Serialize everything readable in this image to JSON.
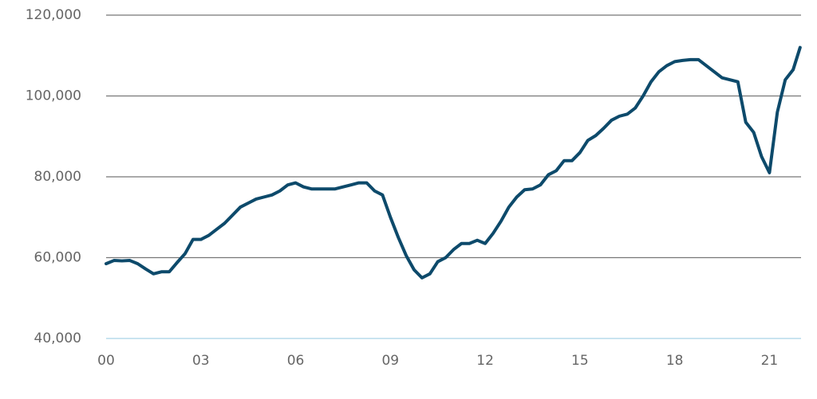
{
  "chart_data": {
    "type": "line",
    "x": [
      0,
      0.25,
      0.5,
      0.75,
      1,
      1.25,
      1.5,
      1.75,
      2,
      2.25,
      2.5,
      2.75,
      3,
      3.25,
      3.5,
      3.75,
      4,
      4.25,
      4.5,
      4.75,
      5,
      5.25,
      5.5,
      5.75,
      6,
      6.25,
      6.5,
      6.75,
      7,
      7.25,
      7.5,
      7.75,
      8,
      8.25,
      8.5,
      8.75,
      9,
      9.25,
      9.5,
      9.75,
      10,
      10.25,
      10.5,
      10.75,
      11,
      11.25,
      11.5,
      11.75,
      12,
      12.25,
      12.5,
      12.75,
      13,
      13.25,
      13.5,
      13.75,
      14,
      14.25,
      14.5,
      14.75,
      15,
      15.25,
      15.5,
      15.75,
      16,
      16.25,
      16.5,
      16.75,
      17,
      17.25,
      17.5,
      17.75,
      18,
      18.25,
      18.5,
      18.75,
      19,
      19.25,
      19.5,
      19.75,
      20,
      20.25,
      20.5,
      20.75,
      21,
      21.25,
      21.5,
      21.75,
      21.97
    ],
    "series": [
      {
        "color": "#0d4a6b",
        "values": [
          58500,
          59300,
          59200,
          59300,
          58500,
          57200,
          56000,
          56500,
          56500,
          58800,
          61000,
          64500,
          64500,
          65500,
          67000,
          68500,
          70500,
          72500,
          73500,
          74500,
          75000,
          75500,
          76500,
          78000,
          78500,
          77500,
          77000,
          77000,
          77000,
          77000,
          77500,
          78000,
          78500,
          78500,
          76500,
          75500,
          70000,
          65000,
          60500,
          57000,
          55000,
          56000,
          59000,
          60000,
          62000,
          63500,
          63500,
          64300,
          63500,
          66000,
          69000,
          72500,
          75000,
          76800,
          77000,
          78000,
          80500,
          81500,
          84000,
          84000,
          86000,
          89000,
          90200,
          92000,
          94000,
          95000,
          95500,
          97000,
          100000,
          103500,
          106000,
          107500,
          108500,
          108800,
          109000,
          109000,
          107500,
          106000,
          104500,
          104000,
          103500,
          93500,
          91000,
          85000,
          81000,
          96000,
          104000,
          106500,
          112000
        ]
      }
    ],
    "xlim": [
      0,
      22
    ],
    "xticks": [
      {
        "value": 0,
        "label": "00"
      },
      {
        "value": 3,
        "label": "03"
      },
      {
        "value": 6,
        "label": "06"
      },
      {
        "value": 9,
        "label": "09"
      },
      12,
      15,
      18,
      21
    ],
    "ylim": [
      40000,
      120000
    ],
    "yticks": [
      {
        "value": 40000,
        "label": "40,000"
      },
      {
        "value": 60000,
        "label": "60,000"
      },
      {
        "value": 80000,
        "label": "80,000"
      },
      {
        "value": 100000,
        "label": "100,000"
      },
      {
        "value": 120000,
        "label": "120,000"
      }
    ],
    "grid": true
  }
}
